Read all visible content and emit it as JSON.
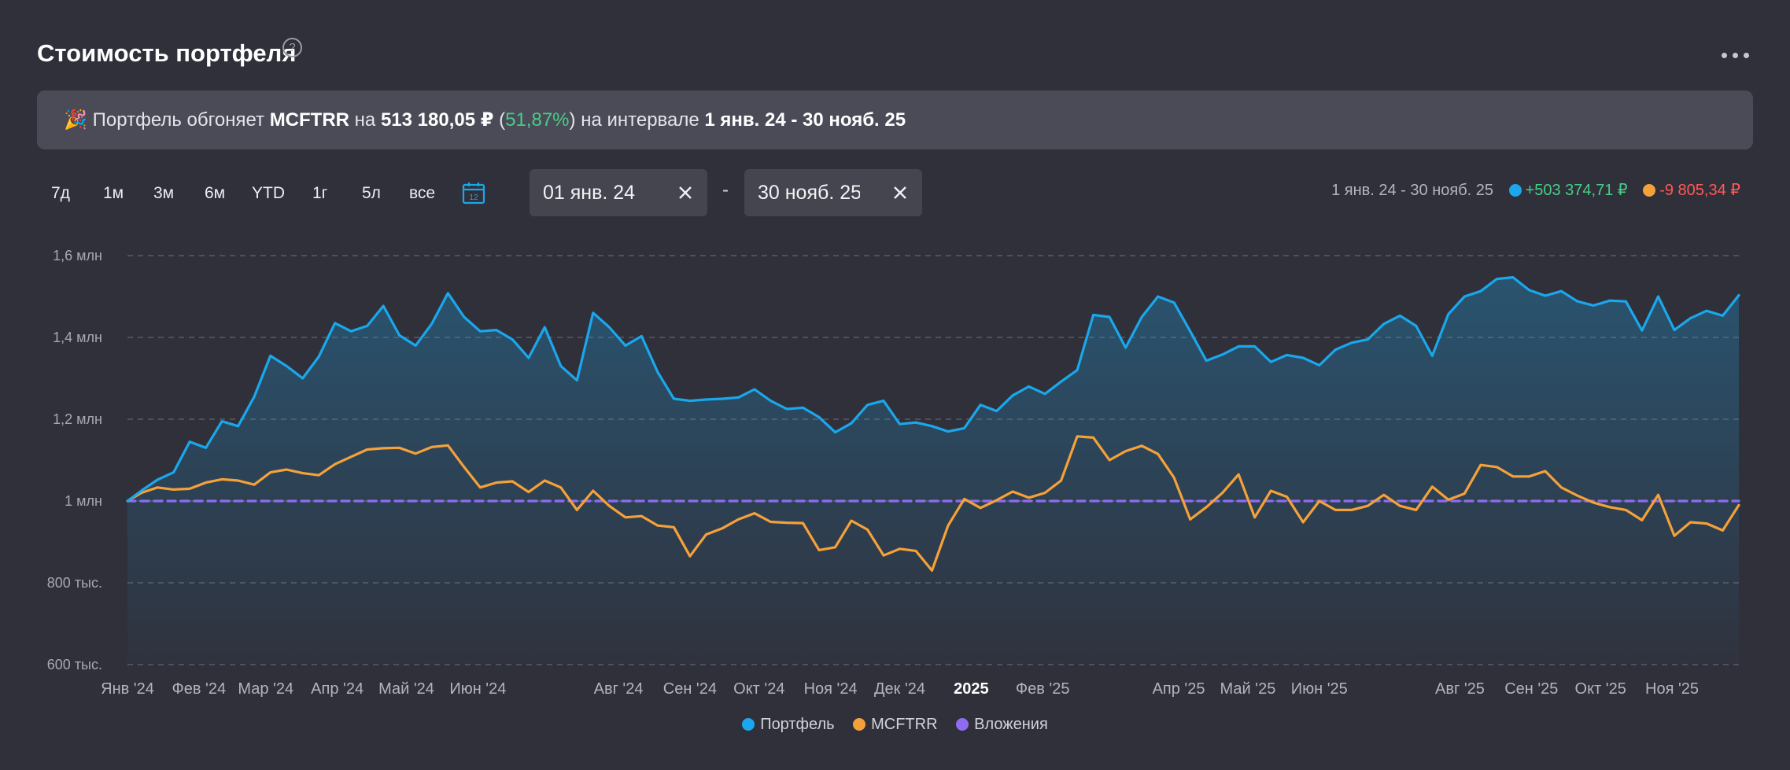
{
  "header": {
    "title": "Стоимость портфеля",
    "help": "?"
  },
  "banner": {
    "emoji": "🎉",
    "text1": "Портфель обгоняет",
    "benchmark": "MCFTRR",
    "text2": "на",
    "diff_value": "513 180,05 ₽",
    "paren_open": "(",
    "diff_percent": "51,87%",
    "paren_close": ")",
    "text3": "на интервале",
    "interval": "1 янв. 24 - 30 нояб. 25"
  },
  "periods": [
    "7д",
    "1м",
    "3м",
    "6м",
    "YTD",
    "1г",
    "5л",
    "все"
  ],
  "calendar_day": "12",
  "date_from": "01 янв. 24",
  "date_to": "30 нояб. 25",
  "date_separator": "-",
  "range_summary": {
    "range": "1 янв. 24 - 30 нояб. 25",
    "portfolio_change": "+503 374,71 ₽",
    "benchmark_change": "-9 805,34 ₽"
  },
  "colors": {
    "portfolio": "#1aa7ec",
    "benchmark": "#f5a13a",
    "investments": "#8f6bf0",
    "positive": "#48cd87",
    "negative": "#ff5a55"
  },
  "chart_data": {
    "type": "line",
    "y_axis": {
      "ticks": [
        600000,
        800000,
        1000000,
        1200000,
        1400000,
        1600000
      ],
      "tick_labels": [
        "600 тыс.",
        "800 тыс.",
        "1 млн",
        "1,2 млн",
        "1,4 млн",
        "1,6 млн"
      ],
      "ylim": [
        600000,
        1600000
      ],
      "grid": true
    },
    "x_axis": {
      "range": [
        "2024-01-01",
        "2025-11-30"
      ],
      "ticks": [
        {
          "date": "2024-01-01",
          "label": "Янв '24"
        },
        {
          "date": "2024-02-01",
          "label": "Фев '24"
        },
        {
          "date": "2024-03-01",
          "label": "Мар '24"
        },
        {
          "date": "2024-04-01",
          "label": "Апр '24"
        },
        {
          "date": "2024-05-01",
          "label": "Май '24"
        },
        {
          "date": "2024-06-01",
          "label": "Июн '24"
        },
        {
          "date": "2024-08-01",
          "label": "Авг '24"
        },
        {
          "date": "2024-09-01",
          "label": "Сен '24"
        },
        {
          "date": "2024-10-01",
          "label": "Окт '24"
        },
        {
          "date": "2024-11-01",
          "label": "Ноя '24"
        },
        {
          "date": "2024-12-01",
          "label": "Дек '24"
        },
        {
          "date": "2025-01-01",
          "label": "2025",
          "bold": true
        },
        {
          "date": "2025-02-01",
          "label": "Фев '25"
        },
        {
          "date": "2025-04-01",
          "label": "Апр '25"
        },
        {
          "date": "2025-05-01",
          "label": "Май '25"
        },
        {
          "date": "2025-06-01",
          "label": "Июн '25"
        },
        {
          "date": "2025-08-01",
          "label": "Авг '25"
        },
        {
          "date": "2025-09-01",
          "label": "Сен '25"
        },
        {
          "date": "2025-10-01",
          "label": "Окт '25"
        },
        {
          "date": "2025-11-01",
          "label": "Ноя '25"
        }
      ]
    },
    "series": [
      {
        "name": "Портфель",
        "color": "#1aa7ec",
        "fill": true,
        "points": [
          [
            "2024-01-01",
            1000000
          ],
          [
            "2024-01-07",
            1025000
          ],
          [
            "2024-01-14",
            1052000
          ],
          [
            "2024-01-21",
            1070000
          ],
          [
            "2024-01-28",
            1145000
          ],
          [
            "2024-02-04",
            1130000
          ],
          [
            "2024-02-11",
            1195000
          ],
          [
            "2024-02-18",
            1183000
          ],
          [
            "2024-02-25",
            1255000
          ],
          [
            "2024-03-03",
            1355000
          ],
          [
            "2024-03-10",
            1330000
          ],
          [
            "2024-03-17",
            1300000
          ],
          [
            "2024-03-24",
            1353000
          ],
          [
            "2024-03-31",
            1435000
          ],
          [
            "2024-04-07",
            1415000
          ],
          [
            "2024-04-14",
            1428000
          ],
          [
            "2024-04-21",
            1477000
          ],
          [
            "2024-04-28",
            1405000
          ],
          [
            "2024-05-05",
            1380000
          ],
          [
            "2024-05-12",
            1433000
          ],
          [
            "2024-05-19",
            1508000
          ],
          [
            "2024-05-26",
            1450000
          ],
          [
            "2024-06-02",
            1415000
          ],
          [
            "2024-06-09",
            1418000
          ],
          [
            "2024-06-16",
            1395000
          ],
          [
            "2024-06-23",
            1350000
          ],
          [
            "2024-06-30",
            1425000
          ],
          [
            "2024-07-07",
            1330000
          ],
          [
            "2024-07-14",
            1295000
          ],
          [
            "2024-07-21",
            1460000
          ],
          [
            "2024-07-28",
            1425000
          ],
          [
            "2024-08-04",
            1380000
          ],
          [
            "2024-08-11",
            1403000
          ],
          [
            "2024-08-18",
            1315000
          ],
          [
            "2024-08-25",
            1250000
          ],
          [
            "2024-09-01",
            1245000
          ],
          [
            "2024-09-08",
            1248000
          ],
          [
            "2024-09-15",
            1250000
          ],
          [
            "2024-09-22",
            1253000
          ],
          [
            "2024-09-29",
            1273000
          ],
          [
            "2024-10-06",
            1245000
          ],
          [
            "2024-10-13",
            1225000
          ],
          [
            "2024-10-20",
            1228000
          ],
          [
            "2024-10-27",
            1205000
          ],
          [
            "2024-11-03",
            1168000
          ],
          [
            "2024-11-10",
            1190000
          ],
          [
            "2024-11-17",
            1235000
          ],
          [
            "2024-11-24",
            1245000
          ],
          [
            "2024-12-01",
            1188000
          ],
          [
            "2024-12-08",
            1192000
          ],
          [
            "2024-12-15",
            1183000
          ],
          [
            "2024-12-22",
            1170000
          ],
          [
            "2024-12-29",
            1178000
          ],
          [
            "2025-01-05",
            1235000
          ],
          [
            "2025-01-12",
            1220000
          ],
          [
            "2025-01-19",
            1258000
          ],
          [
            "2025-01-26",
            1280000
          ],
          [
            "2025-02-02",
            1262000
          ],
          [
            "2025-02-09",
            1292000
          ],
          [
            "2025-02-16",
            1320000
          ],
          [
            "2025-02-23",
            1455000
          ],
          [
            "2025-03-02",
            1450000
          ],
          [
            "2025-03-09",
            1375000
          ],
          [
            "2025-03-16",
            1450000
          ],
          [
            "2025-03-23",
            1500000
          ],
          [
            "2025-03-30",
            1485000
          ],
          [
            "2025-04-06",
            1415000
          ],
          [
            "2025-04-13",
            1343000
          ],
          [
            "2025-04-20",
            1358000
          ],
          [
            "2025-04-27",
            1378000
          ],
          [
            "2025-05-04",
            1378000
          ],
          [
            "2025-05-11",
            1340000
          ],
          [
            "2025-05-18",
            1357000
          ],
          [
            "2025-05-25",
            1350000
          ],
          [
            "2025-06-01",
            1332000
          ],
          [
            "2025-06-08",
            1370000
          ],
          [
            "2025-06-15",
            1387000
          ],
          [
            "2025-06-22",
            1395000
          ],
          [
            "2025-06-29",
            1433000
          ],
          [
            "2025-07-06",
            1453000
          ],
          [
            "2025-07-13",
            1428000
          ],
          [
            "2025-07-20",
            1355000
          ],
          [
            "2025-07-27",
            1457000
          ],
          [
            "2025-08-03",
            1500000
          ],
          [
            "2025-08-10",
            1513000
          ],
          [
            "2025-08-17",
            1543000
          ],
          [
            "2025-08-24",
            1547000
          ],
          [
            "2025-08-31",
            1516000
          ],
          [
            "2025-09-07",
            1502000
          ],
          [
            "2025-09-14",
            1513000
          ],
          [
            "2025-09-21",
            1488000
          ],
          [
            "2025-09-28",
            1478000
          ],
          [
            "2025-10-05",
            1490000
          ],
          [
            "2025-10-12",
            1488000
          ],
          [
            "2025-10-19",
            1417000
          ],
          [
            "2025-10-26",
            1500000
          ],
          [
            "2025-11-02",
            1418000
          ],
          [
            "2025-11-09",
            1447000
          ],
          [
            "2025-11-16",
            1465000
          ],
          [
            "2025-11-23",
            1453000
          ],
          [
            "2025-11-30",
            1503000
          ]
        ]
      },
      {
        "name": "MCFTRR",
        "color": "#f5a13a",
        "fill": false,
        "points": [
          [
            "2024-01-01",
            1000000
          ],
          [
            "2024-01-07",
            1020000
          ],
          [
            "2024-01-14",
            1033000
          ],
          [
            "2024-01-21",
            1028000
          ],
          [
            "2024-01-28",
            1030000
          ],
          [
            "2024-02-04",
            1045000
          ],
          [
            "2024-02-11",
            1053000
          ],
          [
            "2024-02-18",
            1050000
          ],
          [
            "2024-02-25",
            1040000
          ],
          [
            "2024-03-03",
            1070000
          ],
          [
            "2024-03-10",
            1077000
          ],
          [
            "2024-03-17",
            1068000
          ],
          [
            "2024-03-24",
            1063000
          ],
          [
            "2024-03-31",
            1090000
          ],
          [
            "2024-04-07",
            1108000
          ],
          [
            "2024-04-14",
            1126000
          ],
          [
            "2024-04-21",
            1129000
          ],
          [
            "2024-04-28",
            1130000
          ],
          [
            "2024-05-05",
            1116000
          ],
          [
            "2024-05-12",
            1132000
          ],
          [
            "2024-05-19",
            1136000
          ],
          [
            "2024-05-26",
            1083000
          ],
          [
            "2024-06-02",
            1033000
          ],
          [
            "2024-06-09",
            1045000
          ],
          [
            "2024-06-16",
            1048000
          ],
          [
            "2024-06-23",
            1022000
          ],
          [
            "2024-06-30",
            1050000
          ],
          [
            "2024-07-07",
            1033000
          ],
          [
            "2024-07-14",
            978000
          ],
          [
            "2024-07-21",
            1025000
          ],
          [
            "2024-07-28",
            988000
          ],
          [
            "2024-08-04",
            960000
          ],
          [
            "2024-08-11",
            963000
          ],
          [
            "2024-08-18",
            940000
          ],
          [
            "2024-08-25",
            936000
          ],
          [
            "2024-09-01",
            865000
          ],
          [
            "2024-09-08",
            918000
          ],
          [
            "2024-09-15",
            933000
          ],
          [
            "2024-09-22",
            955000
          ],
          [
            "2024-09-29",
            970000
          ],
          [
            "2024-10-06",
            949000
          ],
          [
            "2024-10-13",
            947000
          ],
          [
            "2024-10-20",
            946000
          ],
          [
            "2024-10-27",
            880000
          ],
          [
            "2024-11-03",
            887000
          ],
          [
            "2024-11-10",
            952000
          ],
          [
            "2024-11-17",
            930000
          ],
          [
            "2024-11-24",
            867000
          ],
          [
            "2024-12-01",
            883000
          ],
          [
            "2024-12-08",
            878000
          ],
          [
            "2024-12-15",
            830000
          ],
          [
            "2024-12-22",
            940000
          ],
          [
            "2024-12-29",
            1005000
          ],
          [
            "2025-01-05",
            983000
          ],
          [
            "2025-01-12",
            1002000
          ],
          [
            "2025-01-19",
            1023000
          ],
          [
            "2025-01-26",
            1008000
          ],
          [
            "2025-02-02",
            1020000
          ],
          [
            "2025-02-09",
            1050000
          ],
          [
            "2025-02-16",
            1158000
          ],
          [
            "2025-02-23",
            1155000
          ],
          [
            "2025-03-02",
            1100000
          ],
          [
            "2025-03-09",
            1122000
          ],
          [
            "2025-03-16",
            1135000
          ],
          [
            "2025-03-23",
            1115000
          ],
          [
            "2025-03-30",
            1057000
          ],
          [
            "2025-04-06",
            955000
          ],
          [
            "2025-04-13",
            985000
          ],
          [
            "2025-04-20",
            1020000
          ],
          [
            "2025-04-27",
            1065000
          ],
          [
            "2025-05-04",
            960000
          ],
          [
            "2025-05-11",
            1025000
          ],
          [
            "2025-05-18",
            1010000
          ],
          [
            "2025-05-25",
            948000
          ],
          [
            "2025-06-01",
            1000000
          ],
          [
            "2025-06-08",
            978000
          ],
          [
            "2025-06-15",
            978000
          ],
          [
            "2025-06-22",
            988000
          ],
          [
            "2025-06-29",
            1015000
          ],
          [
            "2025-07-06",
            988000
          ],
          [
            "2025-07-13",
            978000
          ],
          [
            "2025-07-20",
            1035000
          ],
          [
            "2025-07-27",
            1003000
          ],
          [
            "2025-08-03",
            1018000
          ],
          [
            "2025-08-10",
            1088000
          ],
          [
            "2025-08-17",
            1083000
          ],
          [
            "2025-08-24",
            1060000
          ],
          [
            "2025-08-31",
            1060000
          ],
          [
            "2025-09-07",
            1073000
          ],
          [
            "2025-09-14",
            1033000
          ],
          [
            "2025-09-21",
            1013000
          ],
          [
            "2025-09-28",
            996000
          ],
          [
            "2025-10-05",
            985000
          ],
          [
            "2025-10-12",
            978000
          ],
          [
            "2025-10-19",
            953000
          ],
          [
            "2025-10-26",
            1015000
          ],
          [
            "2025-11-02",
            915000
          ],
          [
            "2025-11-09",
            948000
          ],
          [
            "2025-11-16",
            945000
          ],
          [
            "2025-11-23",
            928000
          ],
          [
            "2025-11-30",
            990000
          ]
        ]
      },
      {
        "name": "Вложения",
        "color": "#8f6bf0",
        "fill": false,
        "dashed": true,
        "points": [
          [
            "2024-01-01",
            1000000
          ],
          [
            "2025-11-30",
            1000000
          ]
        ]
      }
    ]
  }
}
